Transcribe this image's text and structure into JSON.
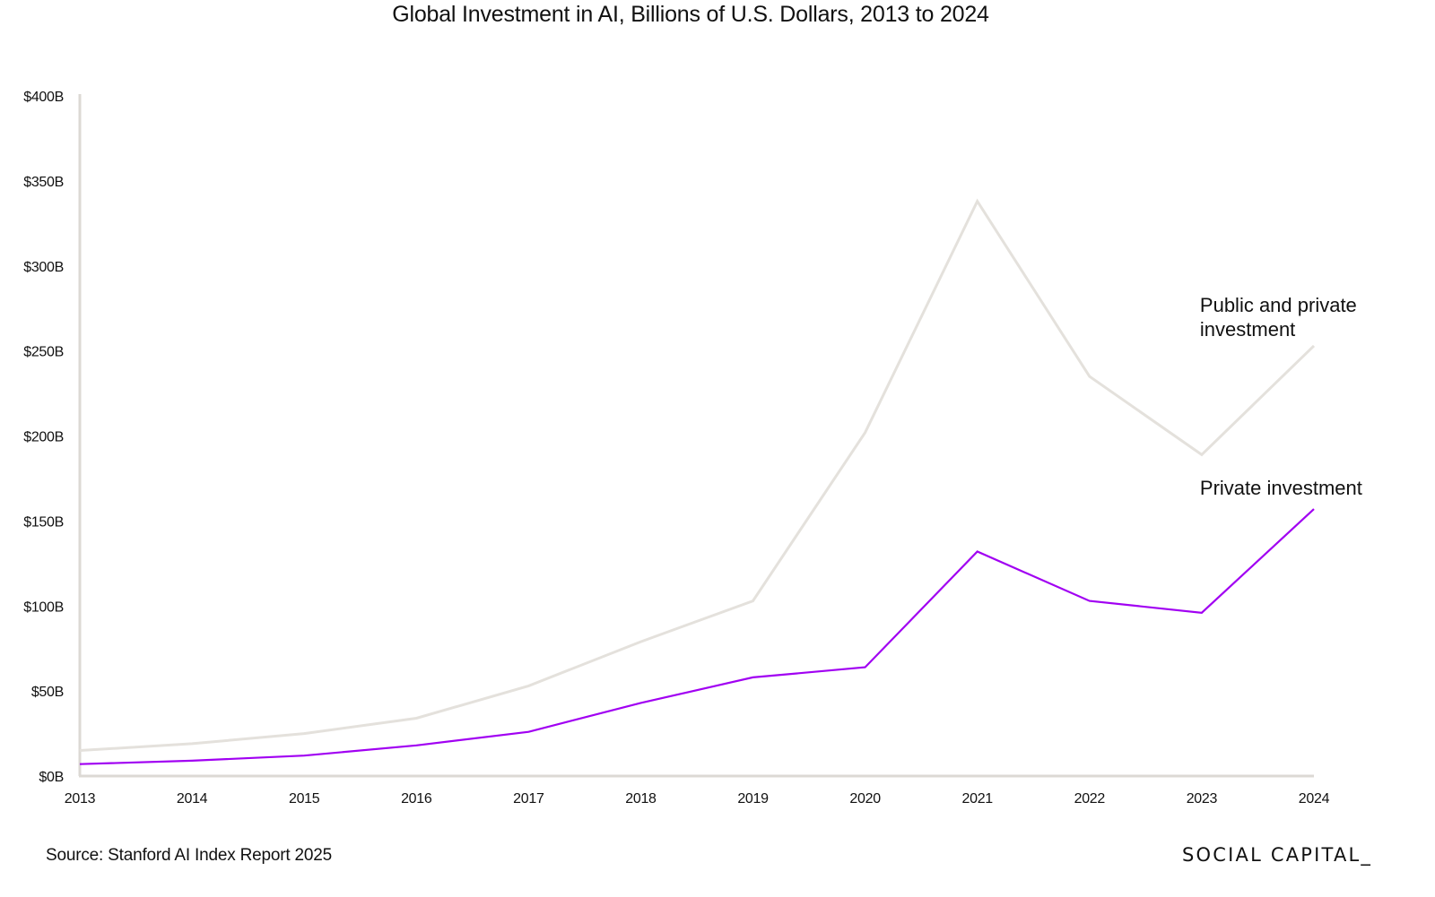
{
  "chart_data": {
    "type": "line",
    "title": "Global Investment in AI, Billions of U.S. Dollars, 2013 to 2024",
    "xlabel": "",
    "ylabel": "",
    "x": [
      "2013",
      "2014",
      "2015",
      "2016",
      "2017",
      "2018",
      "2019",
      "2020",
      "2021",
      "2022",
      "2023",
      "2024"
    ],
    "ylim": [
      0,
      400
    ],
    "yticks": [
      0,
      50,
      100,
      150,
      200,
      250,
      300,
      350,
      400
    ],
    "ytick_labels": [
      "$0B",
      "$50B",
      "$100B",
      "$150B",
      "$200B",
      "$250B",
      "$300B",
      "$350B",
      "$400B"
    ],
    "grid": false,
    "series": [
      {
        "name": "Public and private investment",
        "color": "#e4e1dc",
        "values": [
          15,
          19,
          25,
          34,
          53,
          79,
          103,
          202,
          338,
          235,
          189,
          253
        ]
      },
      {
        "name": "Private investment",
        "color": "#a100f2",
        "values": [
          7,
          9,
          12,
          18,
          26,
          43,
          58,
          64,
          132,
          103,
          96,
          157
        ]
      }
    ]
  },
  "footer": {
    "source": "Source:  Stanford AI Index Report 2025",
    "brand": "SOCIAL CAPITAL_"
  },
  "colors": {
    "axis": "#dcd9d4",
    "text": "#111111"
  }
}
